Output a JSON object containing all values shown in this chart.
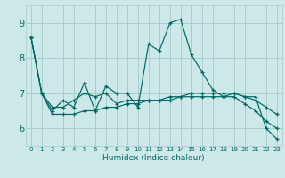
{
  "title": "",
  "xlabel": "Humidex (Indice chaleur)",
  "bg_color": "#cce8e8",
  "grid_color": "#aacccc",
  "line_color": "#006666",
  "marker": "+",
  "xlim": [
    -0.5,
    23.5
  ],
  "ylim": [
    5.5,
    9.5
  ],
  "yticks": [
    6,
    7,
    8,
    9
  ],
  "xticks": [
    0,
    1,
    2,
    3,
    4,
    5,
    6,
    7,
    8,
    9,
    10,
    11,
    12,
    13,
    14,
    15,
    16,
    17,
    18,
    19,
    20,
    21,
    22,
    23
  ],
  "series": [
    [
      8.6,
      7.0,
      6.5,
      6.8,
      6.6,
      7.3,
      6.5,
      7.2,
      7.0,
      7.0,
      6.6,
      8.4,
      8.2,
      9.0,
      9.1,
      8.1,
      7.6,
      7.1,
      6.9,
      7.0,
      6.9,
      6.9,
      6.0,
      5.7
    ],
    [
      8.6,
      7.0,
      6.6,
      6.6,
      6.8,
      7.0,
      6.9,
      7.0,
      6.7,
      6.8,
      6.8,
      6.8,
      6.8,
      6.8,
      6.9,
      6.9,
      6.9,
      6.9,
      6.9,
      6.9,
      6.7,
      6.5,
      6.2,
      6.0
    ],
    [
      8.6,
      7.0,
      6.4,
      6.4,
      6.4,
      6.5,
      6.5,
      6.6,
      6.6,
      6.7,
      6.7,
      6.8,
      6.8,
      6.9,
      6.9,
      7.0,
      7.0,
      7.0,
      7.0,
      7.0,
      6.9,
      6.8,
      6.6,
      6.4
    ]
  ]
}
